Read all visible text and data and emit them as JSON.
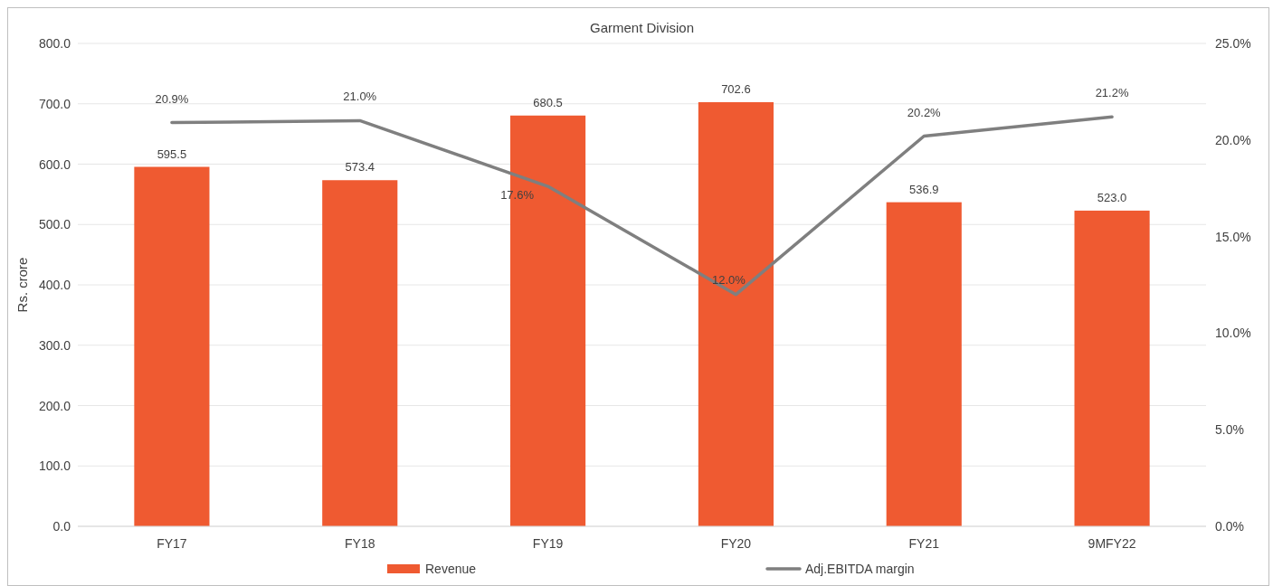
{
  "chart_data": {
    "type": "bar",
    "title": "Garment Division",
    "ylabel": "Rs. crore",
    "categories": [
      "FY17",
      "FY18",
      "FY19",
      "FY20",
      "FY21",
      "9MFY22"
    ],
    "series": [
      {
        "name": "Revenue",
        "color": "#ef5a31",
        "values": [
          595.5,
          573.4,
          680.5,
          702.6,
          536.9,
          523.0
        ],
        "value_labels": [
          "595.5",
          "573.4",
          "680.5",
          "702.6",
          "536.9",
          "523.0"
        ]
      },
      {
        "name": "Adj.EBITDA margin",
        "type": "line",
        "axis": "y2",
        "color": "#7f7f7f",
        "values": [
          20.9,
          21.0,
          17.6,
          12.0,
          20.2,
          21.2
        ],
        "value_labels": [
          "20.9%",
          "21.0%",
          "17.6%",
          "12.0%",
          "20.2%",
          "21.2%"
        ]
      }
    ],
    "ylim": [
      0,
      800
    ],
    "yticks": [
      {
        "value": 0,
        "label": "0.0"
      },
      {
        "value": 100,
        "label": "100.0"
      },
      {
        "value": 200,
        "label": "200.0"
      },
      {
        "value": 300,
        "label": "300.0"
      },
      {
        "value": 400,
        "label": "400.0"
      },
      {
        "value": 500,
        "label": "500.0"
      },
      {
        "value": 600,
        "label": "600.0"
      },
      {
        "value": 700,
        "label": "700.0"
      },
      {
        "value": 800,
        "label": "800.0"
      }
    ],
    "y2lim": [
      0,
      25
    ],
    "y2ticks": [
      {
        "value": 0,
        "label": "0.0%"
      },
      {
        "value": 5,
        "label": "5.0%"
      },
      {
        "value": 10,
        "label": "10.0%"
      },
      {
        "value": 15,
        "label": "15.0%"
      },
      {
        "value": 20,
        "label": "20.0%"
      },
      {
        "value": 25,
        "label": "25.0%"
      }
    ],
    "grid": "y",
    "legend": "bottom",
    "marker": "none",
    "line_style": "solid"
  }
}
